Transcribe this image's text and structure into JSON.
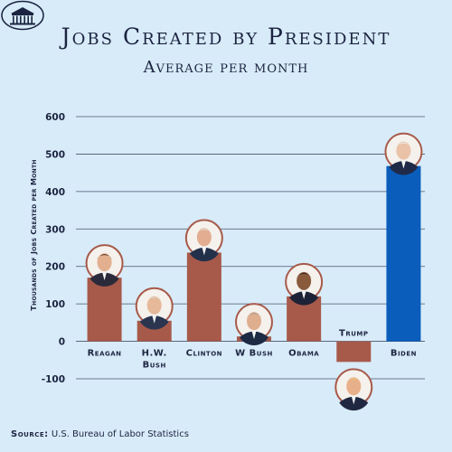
{
  "title": "Jobs Created by President",
  "subtitle": "Average per month",
  "source_label": "Source:",
  "source_text": "U.S. Bureau of Labor Statistics",
  "colors": {
    "background": "#d8ebf9",
    "bar_default": "#a75a4a",
    "bar_highlight": "#0a5dbb",
    "grid": "#1b2440",
    "text": "#1b2440"
  },
  "chart_data": {
    "type": "bar",
    "title": "Jobs Created by President",
    "subtitle": "Average per month",
    "ylabel": "Thousands of Jobs Created per Month",
    "xlabel": "",
    "ylim": [
      -100,
      600
    ],
    "yticks": [
      -100,
      0,
      100,
      200,
      300,
      400,
      500,
      600
    ],
    "grid": true,
    "categories": [
      "Reagan",
      "H.W. Bush",
      "Clinton",
      "W Bush",
      "Obama",
      "Trump",
      "Biden"
    ],
    "category_labels": [
      [
        "Reagan"
      ],
      [
        "H.W.",
        "Bush"
      ],
      [
        "Clinton"
      ],
      [
        "W Bush"
      ],
      [
        "Obama"
      ],
      [
        "Trump"
      ],
      [
        "Biden"
      ]
    ],
    "values": [
      170,
      55,
      237,
      13,
      120,
      -55,
      468
    ],
    "highlight": "Biden",
    "portraits": [
      "reagan-portrait",
      "hw-bush-portrait",
      "clinton-portrait",
      "w-bush-portrait",
      "obama-portrait",
      "trump-portrait",
      "biden-portrait"
    ]
  },
  "logo": "white-house-seal-icon"
}
